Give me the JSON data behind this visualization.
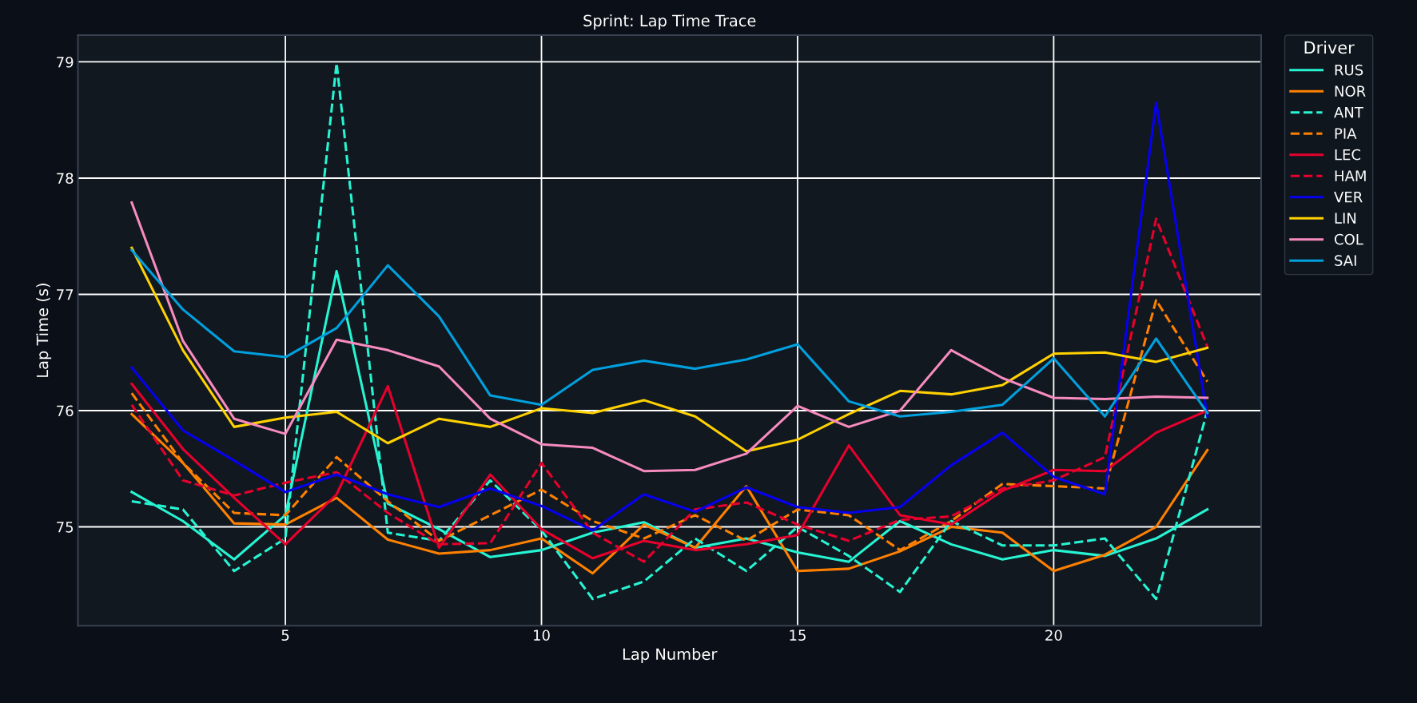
{
  "chart_data": {
    "type": "line",
    "title": "Sprint: Lap Time Trace",
    "xlabel": "Lap Number",
    "ylabel": "Lap Time (s)",
    "legend_title": "Driver",
    "x": [
      2,
      3,
      4,
      5,
      6,
      7,
      8,
      9,
      10,
      11,
      12,
      13,
      14,
      15,
      16,
      17,
      18,
      19,
      20,
      21,
      22,
      23
    ],
    "series": [
      {
        "name": "RUS",
        "color": "#27f4d2",
        "line_style": "solid",
        "values": [
          75.3,
          75.05,
          74.72,
          75.1,
          77.2,
          75.2,
          74.98,
          74.74,
          74.8,
          74.95,
          75.04,
          74.82,
          74.9,
          74.78,
          74.7,
          75.05,
          74.85,
          74.72,
          74.8,
          74.75,
          74.9,
          75.15
        ]
      },
      {
        "name": "NOR",
        "color": "#ff8000",
        "line_style": "solid",
        "values": [
          75.97,
          75.55,
          75.03,
          75.02,
          75.25,
          74.89,
          74.77,
          74.8,
          74.9,
          74.6,
          75.02,
          74.82,
          75.35,
          74.62,
          74.64,
          74.79,
          75.0,
          74.95,
          74.62,
          74.76,
          75.0,
          75.66
        ]
      },
      {
        "name": "ANT",
        "color": "#27f4d2",
        "line_style": "dashed",
        "values": [
          75.22,
          75.15,
          74.62,
          74.9,
          78.99,
          74.95,
          74.88,
          75.4,
          74.97,
          74.38,
          74.53,
          74.9,
          74.62,
          75.0,
          74.75,
          74.44,
          75.05,
          74.84,
          74.84,
          74.9,
          74.38,
          76.0
        ]
      },
      {
        "name": "PIA",
        "color": "#ff8000",
        "line_style": "dashed",
        "values": [
          76.15,
          75.55,
          75.12,
          75.1,
          75.6,
          75.22,
          74.88,
          75.1,
          75.32,
          75.05,
          74.9,
          75.1,
          74.88,
          75.15,
          75.1,
          74.8,
          75.05,
          75.37,
          75.35,
          75.33,
          76.95,
          76.25
        ]
      },
      {
        "name": "LEC",
        "color": "#e8002d",
        "line_style": "solid",
        "values": [
          76.23,
          75.67,
          75.25,
          74.85,
          75.28,
          76.21,
          74.82,
          75.45,
          74.98,
          74.73,
          74.88,
          74.8,
          74.85,
          74.93,
          75.7,
          75.1,
          75.02,
          75.31,
          75.49,
          75.48,
          75.81,
          76.0
        ]
      },
      {
        "name": "HAM",
        "color": "#e8002d",
        "line_style": "dashed",
        "values": [
          76.05,
          75.4,
          75.27,
          75.38,
          75.47,
          75.12,
          74.85,
          74.86,
          75.55,
          74.95,
          74.7,
          75.15,
          75.21,
          75.02,
          74.88,
          75.06,
          75.09,
          75.33,
          75.4,
          75.6,
          77.65,
          76.55
        ]
      },
      {
        "name": "VER",
        "color": "#0600ef",
        "line_style": "solid",
        "values": [
          76.37,
          75.83,
          75.57,
          75.3,
          75.45,
          75.28,
          75.17,
          75.33,
          75.18,
          74.97,
          75.28,
          75.13,
          75.34,
          75.17,
          75.12,
          75.17,
          75.53,
          75.81,
          75.43,
          75.28,
          78.65,
          75.95
        ]
      },
      {
        "name": "LIN",
        "color": "#ffd100",
        "line_style": "solid",
        "values": [
          77.4,
          76.52,
          75.86,
          75.94,
          75.99,
          75.72,
          75.93,
          75.86,
          76.02,
          75.98,
          76.09,
          75.95,
          75.65,
          75.75,
          75.97,
          76.17,
          76.14,
          76.22,
          76.49,
          76.5,
          76.42,
          76.54
        ]
      },
      {
        "name": "COL",
        "color": "#f78bbf",
        "line_style": "solid",
        "values": [
          77.79,
          76.6,
          75.93,
          75.8,
          76.61,
          76.52,
          76.38,
          75.93,
          75.71,
          75.68,
          75.48,
          75.49,
          75.63,
          76.04,
          75.86,
          76.0,
          76.52,
          76.28,
          76.11,
          76.1,
          76.12,
          76.11
        ]
      },
      {
        "name": "SAI",
        "color": "#00a0de",
        "line_style": "solid",
        "values": [
          77.38,
          76.87,
          76.51,
          76.46,
          76.71,
          77.25,
          76.81,
          76.13,
          76.05,
          76.35,
          76.43,
          76.36,
          76.44,
          76.57,
          76.08,
          75.95,
          75.99,
          76.05,
          76.45,
          75.95,
          76.62,
          75.98
        ]
      }
    ],
    "xlim": [
      0.95,
      24.05
    ],
    "ylim": [
      74.15,
      79.23
    ],
    "xticks": [
      5,
      10,
      15,
      20
    ],
    "yticks": [
      75,
      76,
      77,
      78,
      79
    ],
    "grid": true,
    "legend": "top right",
    "marker": "none"
  }
}
